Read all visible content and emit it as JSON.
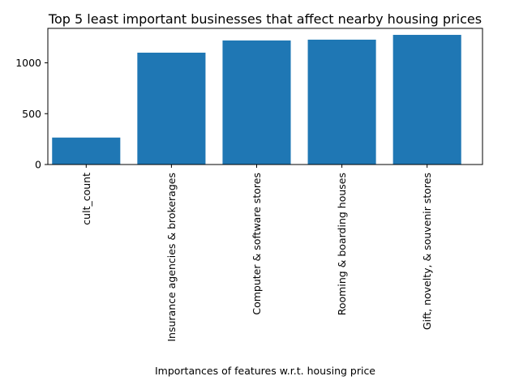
{
  "chart_data": {
    "type": "bar",
    "title": "Top 5 least important businesses that affect nearby housing prices",
    "xlabel": "Importances of features w.r.t. housing price",
    "ylabel": "",
    "categories": [
      "cult_count",
      "Insurance agencies & brokerages",
      "Computer & software stores",
      "Rooming & boarding houses",
      "Gift, novelty, & souvenir stores"
    ],
    "values": [
      265,
      1100,
      1220,
      1228,
      1275
    ],
    "ylim": [
      0,
      1339
    ],
    "yticks": [
      0,
      500,
      1000
    ],
    "ytick_labels": [
      "0",
      "500",
      "1000"
    ],
    "bar_color": "#1f77b4",
    "grid": false,
    "legend": "none"
  }
}
